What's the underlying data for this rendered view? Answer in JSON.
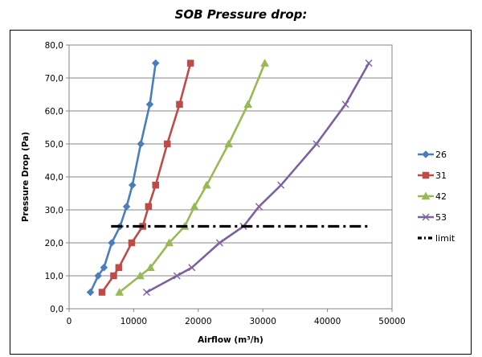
{
  "chart_data": {
    "type": "line",
    "title": "SOB Pressure drop:",
    "xlabel": "Airflow (m³/h)",
    "ylabel": "Pressure Drop (Pa)",
    "xlim": [
      0,
      50000
    ],
    "ylim": [
      0,
      80
    ],
    "x_ticks": [
      "0",
      "10000",
      "20000",
      "30000",
      "40000",
      "50000"
    ],
    "y_ticks": [
      "0,0",
      "10,0",
      "20,0",
      "30,0",
      "40,0",
      "50,0",
      "60,0",
      "70,0",
      "80,0"
    ],
    "grid": "horizontal",
    "legend_position": "right",
    "series": [
      {
        "name": "26",
        "color": "#4a7ebb",
        "marker": "diamond",
        "points": [
          [
            3300,
            5
          ],
          [
            4500,
            10
          ],
          [
            5400,
            12.5
          ],
          [
            6600,
            20
          ],
          [
            7900,
            25
          ],
          [
            8900,
            31
          ],
          [
            9800,
            37.5
          ],
          [
            11100,
            50
          ],
          [
            12500,
            62
          ],
          [
            13400,
            74.5
          ]
        ]
      },
      {
        "name": "31",
        "color": "#be4b48",
        "marker": "square",
        "points": [
          [
            5100,
            5
          ],
          [
            6900,
            10
          ],
          [
            7700,
            12.5
          ],
          [
            9700,
            20
          ],
          [
            11400,
            25
          ],
          [
            12300,
            31
          ],
          [
            13400,
            37.5
          ],
          [
            15200,
            50
          ],
          [
            17100,
            62
          ],
          [
            18800,
            74.5
          ]
        ]
      },
      {
        "name": "42",
        "color": "#98b954",
        "marker": "triangle",
        "points": [
          [
            7800,
            5
          ],
          [
            11000,
            10
          ],
          [
            12600,
            12.5
          ],
          [
            15500,
            20
          ],
          [
            17900,
            25
          ],
          [
            19400,
            31
          ],
          [
            21300,
            37.5
          ],
          [
            24700,
            50
          ],
          [
            27700,
            62
          ],
          [
            30300,
            74.5
          ]
        ]
      },
      {
        "name": "53",
        "color": "#7d60a0",
        "marker": "x",
        "points": [
          [
            12000,
            5
          ],
          [
            16700,
            10
          ],
          [
            19000,
            12.5
          ],
          [
            23300,
            20
          ],
          [
            27000,
            25
          ],
          [
            29400,
            31
          ],
          [
            32800,
            37.5
          ],
          [
            38300,
            50
          ],
          [
            42800,
            62
          ],
          [
            46400,
            74.5
          ]
        ]
      },
      {
        "name": "limit",
        "color": "#000000",
        "marker": "none",
        "dash": "dash-dot",
        "points": [
          [
            6500,
            25
          ],
          [
            46500,
            25
          ]
        ]
      }
    ]
  }
}
